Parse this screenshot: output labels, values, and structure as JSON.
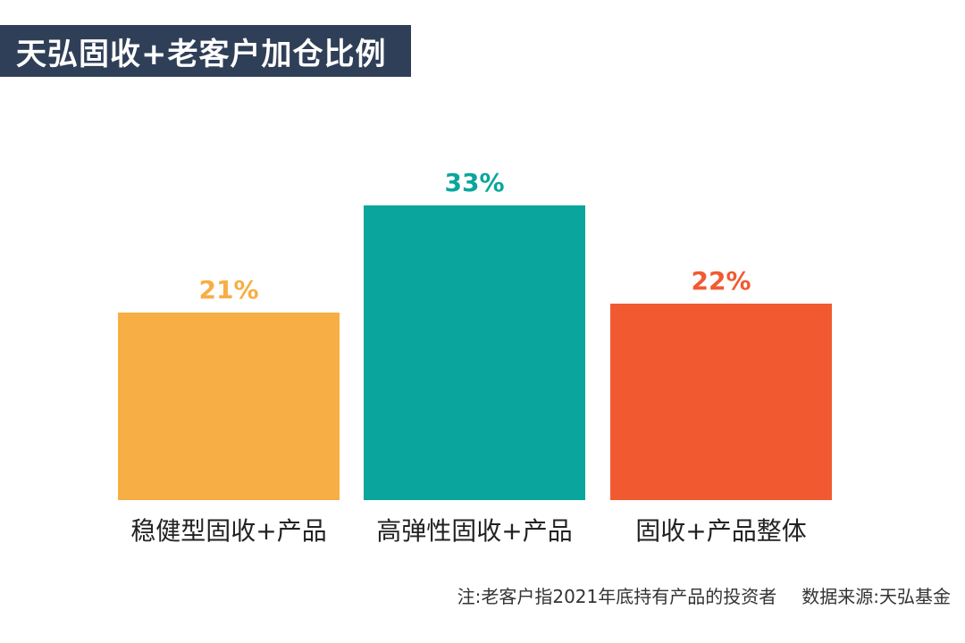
{
  "title": "天弘固收+老客户加仓比例",
  "footnote": {
    "note": "注:老客户指2021年底持有产品的投资者",
    "source": "数据来源:天弘基金"
  },
  "colors": {
    "banner": "#2f3f58",
    "bar_1": "#f7ae45",
    "bar_2": "#0aa69d",
    "bar_3": "#f15a31"
  },
  "chart_data": {
    "type": "bar",
    "categories": [
      "稳健型固收+产品",
      "高弹性固收+产品",
      "固收+产品整体"
    ],
    "values": [
      21,
      33,
      22
    ],
    "data_labels": [
      "21%",
      "33%",
      "22%"
    ],
    "colors": [
      "#f7ae45",
      "#0aa69d",
      "#f15a31"
    ],
    "unit": "%",
    "grid": false,
    "axes_visible": false
  }
}
